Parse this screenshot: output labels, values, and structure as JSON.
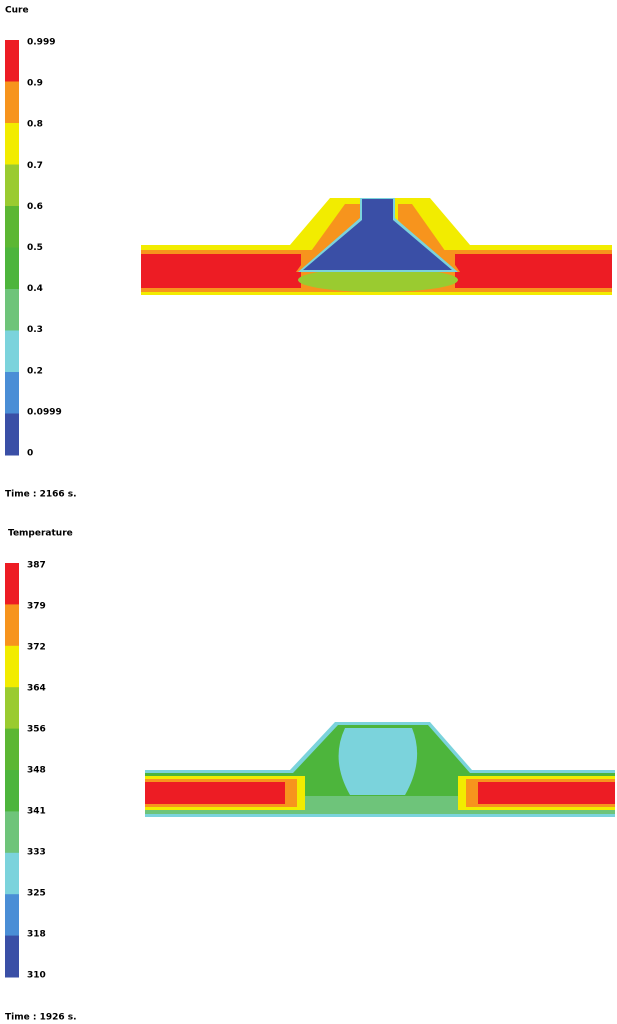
{
  "panels": [
    {
      "title": "Cure",
      "legend": {
        "labels": [
          "0.999",
          "0.9",
          "0.8",
          "0.7",
          "0.6",
          "0.5",
          "0.4",
          "0.3",
          "0.2",
          "0.0999",
          "0"
        ],
        "colors": [
          "#ed1c24",
          "#f7941d",
          "#f2ec00",
          "#9acb30",
          "#5cb733",
          "#4db53c",
          "#6ec47a",
          "#7bd3dc",
          "#4a8ed6",
          "#3a4fa6"
        ]
      },
      "time": "Time : 2166 s."
    },
    {
      "title": "Temperature",
      "legend": {
        "labels": [
          "387",
          "379",
          "372",
          "364",
          "356",
          "348",
          "341",
          "333",
          "325",
          "318",
          "310"
        ],
        "colors": [
          "#ed1c24",
          "#f7941d",
          "#f2ec00",
          "#9acb30",
          "#5cb733",
          "#4db53c",
          "#6ec47a",
          "#7bd3dc",
          "#4a8ed6",
          "#3a4fa6"
        ]
      },
      "time": "Time : 1926 s."
    }
  ]
}
